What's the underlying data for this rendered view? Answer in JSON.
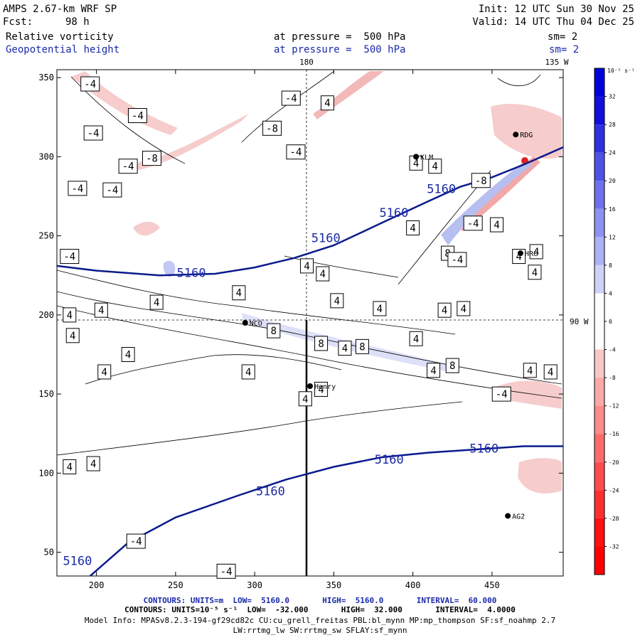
{
  "header": {
    "model": "AMPS 2.67-km WRF SP",
    "fcst_label": "Fcst:",
    "fcst_value": "98 h",
    "init": "Init: 12 UTC Sun 30 Nov 25",
    "valid": "Valid: 14 UTC Thu 04 Dec 25",
    "field1": "Relative vorticity",
    "field2": "Geopotential height",
    "pressure1": "at pressure =  500 hPa",
    "pressure2": "at pressure =  500 hPa",
    "sm1": "sm= 2",
    "sm2": "sm= 2"
  },
  "footer": {
    "line1": "CONTOURS: UNITS=m  LOW=  5160.0       HIGH=  5160.0       INTERVAL=  60.000",
    "line2": "CONTOURS: UNITS=10⁻⁵ s⁻¹  LOW=  -32.000       HIGH=  32.000       INTERVAL=  4.0000",
    "line3": "Model Info: MPASv8.2.3-194-gf29cd82c CU:cu_grell_freitas PBL:bl_mynn MP:mp_thompson SF:sf_noahmp 2.7",
    "line4": "LW:rrtmg_lw SW:rrtmg_sw SFLAY:sf_mynn"
  },
  "colors": {
    "height_contour": "#0a1a8c",
    "vort_line": "#000000"
  },
  "chart_data": {
    "type": "contour-map",
    "x_range": [
      175,
      495
    ],
    "y_range": [
      35,
      355
    ],
    "x_ticks": [
      200,
      250,
      300,
      350,
      400,
      450
    ],
    "y_ticks": [
      50,
      100,
      150,
      200,
      250,
      300,
      350
    ],
    "meridian_labels": [
      "180",
      "135 W",
      "90 W"
    ],
    "colorbar": {
      "unit_label": "10⁻⁵ s⁻¹",
      "ticks": [
        32,
        28,
        24,
        20,
        16,
        12,
        8,
        4,
        0,
        -4,
        -8,
        -12,
        -16,
        -20,
        -24,
        -28,
        -32
      ]
    },
    "stations": [
      {
        "name": "RDG",
        "x": 465,
        "y": 314
      },
      {
        "name": "KLM",
        "x": 402,
        "y": 300
      },
      {
        "name": "HRC",
        "x": 468,
        "y": 239
      },
      {
        "name": "NCO",
        "x": 294,
        "y": 195
      },
      {
        "name": "Henry",
        "x": 335,
        "y": 155
      },
      {
        "name": "AG2",
        "x": 460,
        "y": 73
      }
    ],
    "height_contour_value": 5160,
    "height_contours": [
      [
        [
          175,
          231
        ],
        [
          200,
          228
        ],
        [
          240,
          225
        ],
        [
          275,
          226
        ],
        [
          300,
          230
        ],
        [
          325,
          236
        ],
        [
          350,
          244
        ],
        [
          380,
          258
        ],
        [
          410,
          272
        ],
        [
          430,
          281
        ],
        [
          450,
          287
        ],
        [
          470,
          295
        ],
        [
          495,
          306
        ]
      ],
      [
        [
          196,
          35
        ],
        [
          220,
          56
        ],
        [
          250,
          72
        ],
        [
          290,
          86
        ],
        [
          320,
          96
        ],
        [
          350,
          104
        ],
        [
          380,
          110
        ],
        [
          410,
          113
        ],
        [
          440,
          115
        ],
        [
          470,
          117
        ],
        [
          495,
          117
        ]
      ]
    ],
    "height_labels": [
      {
        "text": "5160",
        "x": 260,
        "y": 224
      },
      {
        "text": "5160",
        "x": 345,
        "y": 246
      },
      {
        "text": "5160",
        "x": 388,
        "y": 262
      },
      {
        "text": "5160",
        "x": 418,
        "y": 277
      },
      {
        "text": "5160",
        "x": 445,
        "y": 113
      },
      {
        "text": "5160",
        "x": 385,
        "y": 106
      },
      {
        "text": "5160",
        "x": 310,
        "y": 86
      },
      {
        "text": "5160",
        "x": 188,
        "y": 42
      }
    ],
    "vort_labels": [
      {
        "v": "-4",
        "x": 196,
        "y": 346
      },
      {
        "v": "-4",
        "x": 226,
        "y": 326
      },
      {
        "v": "-4",
        "x": 198,
        "y": 315
      },
      {
        "v": "-8",
        "x": 235,
        "y": 299
      },
      {
        "v": "-4",
        "x": 220,
        "y": 294
      },
      {
        "v": "-4",
        "x": 210,
        "y": 279
      },
      {
        "v": "-4",
        "x": 188,
        "y": 280
      },
      {
        "v": "-4",
        "x": 183,
        "y": 237
      },
      {
        "v": "-8",
        "x": 311,
        "y": 318
      },
      {
        "v": "-4",
        "x": 323,
        "y": 337
      },
      {
        "v": "-4",
        "x": 326,
        "y": 303
      },
      {
        "v": "4",
        "x": 346,
        "y": 334
      },
      {
        "v": "4",
        "x": 402,
        "y": 296
      },
      {
        "v": "4",
        "x": 414,
        "y": 294
      },
      {
        "v": "-8",
        "x": 443,
        "y": 285
      },
      {
        "v": "4",
        "x": 400,
        "y": 255
      },
      {
        "v": "-4",
        "x": 438,
        "y": 258
      },
      {
        "v": "4",
        "x": 453,
        "y": 257
      },
      {
        "v": "8",
        "x": 422,
        "y": 239
      },
      {
        "v": "-4",
        "x": 428,
        "y": 235
      },
      {
        "v": "4",
        "x": 467,
        "y": 237
      },
      {
        "v": "4",
        "x": 478,
        "y": 240
      },
      {
        "v": "4",
        "x": 477,
        "y": 227
      },
      {
        "v": "4",
        "x": 333,
        "y": 231
      },
      {
        "v": "4",
        "x": 343,
        "y": 226
      },
      {
        "v": "4",
        "x": 290,
        "y": 214
      },
      {
        "v": "4",
        "x": 238,
        "y": 208
      },
      {
        "v": "4",
        "x": 352,
        "y": 209
      },
      {
        "v": "4",
        "x": 183,
        "y": 200
      },
      {
        "v": "4",
        "x": 203,
        "y": 203
      },
      {
        "v": "4",
        "x": 379,
        "y": 204
      },
      {
        "v": "4",
        "x": 420,
        "y": 203
      },
      {
        "v": "4",
        "x": 432,
        "y": 204
      },
      {
        "v": "4",
        "x": 185,
        "y": 187
      },
      {
        "v": "8",
        "x": 312,
        "y": 190
      },
      {
        "v": "8",
        "x": 342,
        "y": 182
      },
      {
        "v": "4",
        "x": 402,
        "y": 185
      },
      {
        "v": "4",
        "x": 357,
        "y": 179
      },
      {
        "v": "8",
        "x": 368,
        "y": 180
      },
      {
        "v": "4",
        "x": 220,
        "y": 175
      },
      {
        "v": "4",
        "x": 205,
        "y": 164
      },
      {
        "v": "4",
        "x": 296,
        "y": 164
      },
      {
        "v": "4",
        "x": 413,
        "y": 165
      },
      {
        "v": "8",
        "x": 425,
        "y": 168
      },
      {
        "v": "4",
        "x": 474,
        "y": 165
      },
      {
        "v": "4",
        "x": 487,
        "y": 164
      },
      {
        "v": "-4",
        "x": 456,
        "y": 150
      },
      {
        "v": "4",
        "x": 342,
        "y": 153
      },
      {
        "v": "4",
        "x": 332,
        "y": 147
      },
      {
        "v": "4",
        "x": 183,
        "y": 104
      },
      {
        "v": "4",
        "x": 198,
        "y": 106
      },
      {
        "v": "-4",
        "x": 225,
        "y": 57
      },
      {
        "v": "-4",
        "x": 282,
        "y": 38
      }
    ]
  }
}
